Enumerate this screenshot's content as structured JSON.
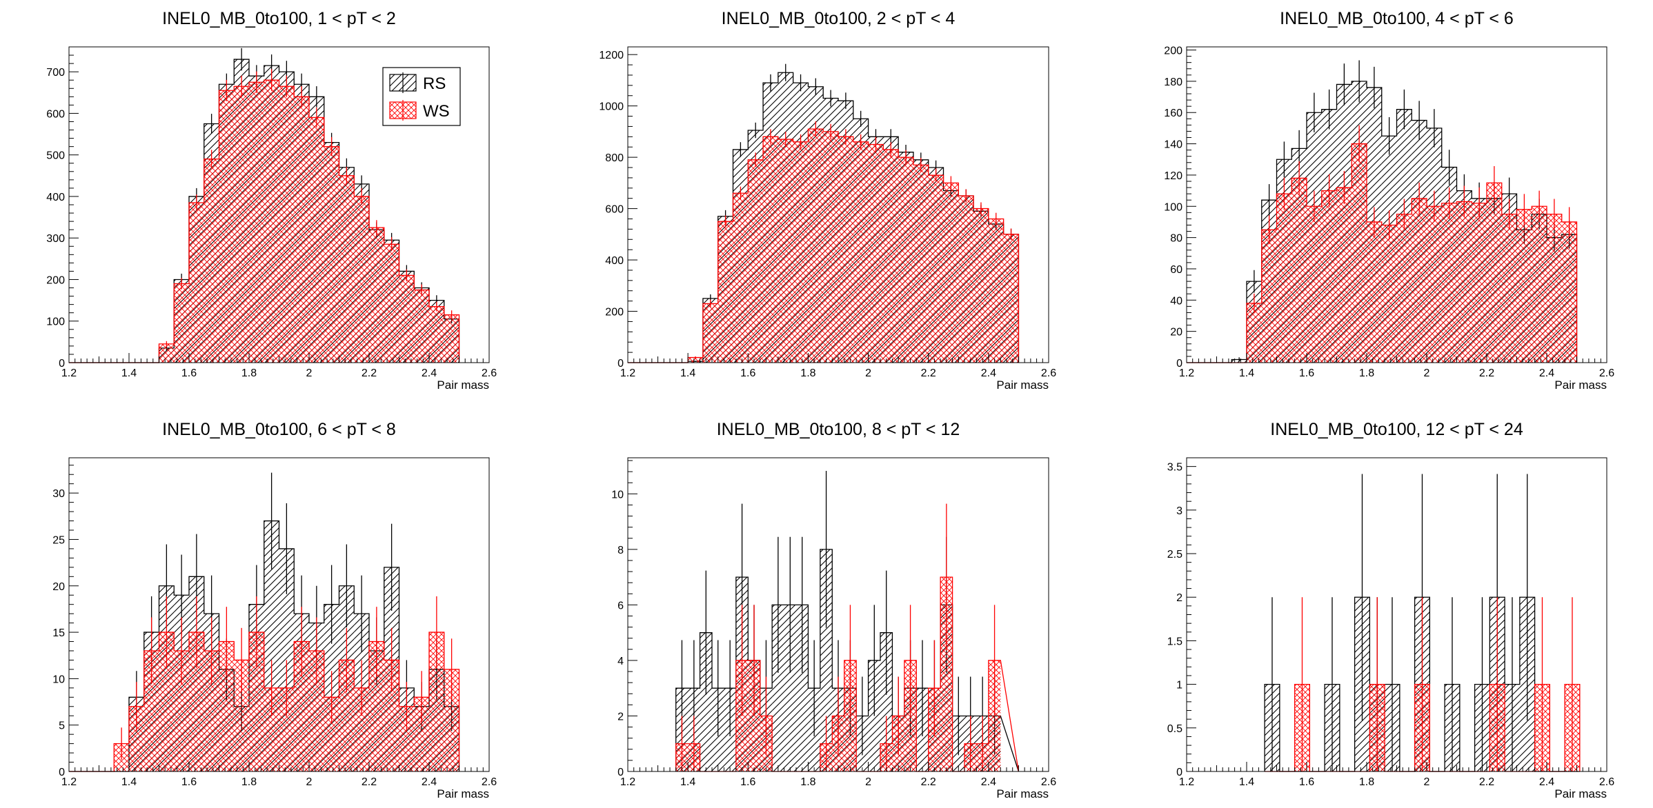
{
  "colors": {
    "rs": "#000000",
    "ws": "#ff0000",
    "background": "#ffffff"
  },
  "legend": {
    "placement": "top-right",
    "panel": 0,
    "entries": [
      "RS",
      "WS"
    ]
  },
  "chart_data": [
    {
      "type": "bar",
      "title": "INEL0_MB_0to100, 1 < pT < 2",
      "xlabel": "Pair mass",
      "xlim": [
        1.2,
        2.6
      ],
      "ylim": [
        0,
        760
      ],
      "xticks": [
        1.2,
        1.4,
        1.6,
        1.8,
        2,
        2.2,
        2.4,
        2.6
      ],
      "xticklabels": [
        "1.2",
        "1.4",
        "1.6",
        "1.8",
        "2",
        "2.2",
        "2.4",
        "2.6"
      ],
      "yticks": [
        0,
        100,
        200,
        300,
        400,
        500,
        600,
        700
      ],
      "yticklabels": [
        "0",
        "100",
        "200",
        "300",
        "400",
        "500",
        "600",
        "700"
      ],
      "bin_edges": [
        1.2,
        1.25,
        1.3,
        1.35,
        1.4,
        1.45,
        1.5,
        1.55,
        1.6,
        1.65,
        1.7,
        1.75,
        1.8,
        1.85,
        1.9,
        1.95,
        2.0,
        2.05,
        2.1,
        2.15,
        2.2,
        2.25,
        2.3,
        2.35,
        2.4,
        2.45,
        2.5
      ],
      "series": [
        {
          "name": "RS",
          "values": [
            0,
            0,
            0,
            0,
            0,
            0,
            35,
            200,
            400,
            575,
            670,
            730,
            690,
            715,
            700,
            670,
            640,
            530,
            470,
            430,
            320,
            295,
            220,
            180,
            150,
            105
          ]
        },
        {
          "name": "WS",
          "values": [
            0,
            0,
            0,
            0,
            0,
            0,
            45,
            190,
            385,
            490,
            655,
            665,
            675,
            680,
            665,
            640,
            590,
            520,
            450,
            400,
            325,
            285,
            210,
            175,
            135,
            115
          ]
        }
      ]
    },
    {
      "type": "bar",
      "title": "INEL0_MB_0to100, 2 < pT < 4",
      "xlabel": "Pair mass",
      "xlim": [
        1.2,
        2.6
      ],
      "ylim": [
        0,
        1230
      ],
      "xticks": [
        1.2,
        1.4,
        1.6,
        1.8,
        2,
        2.2,
        2.4,
        2.6
      ],
      "xticklabels": [
        "1.2",
        "1.4",
        "1.6",
        "1.8",
        "2",
        "2.2",
        "2.4",
        "2.6"
      ],
      "yticks": [
        0,
        200,
        400,
        600,
        800,
        1000,
        1200
      ],
      "yticklabels": [
        "0",
        "200",
        "400",
        "600",
        "800",
        "1000",
        "1200"
      ],
      "bin_edges": [
        1.2,
        1.25,
        1.3,
        1.35,
        1.4,
        1.45,
        1.5,
        1.55,
        1.6,
        1.65,
        1.7,
        1.75,
        1.8,
        1.85,
        1.9,
        1.95,
        2.0,
        2.05,
        2.1,
        2.15,
        2.2,
        2.25,
        2.3,
        2.35,
        2.4,
        2.45,
        2.5
      ],
      "series": [
        {
          "name": "RS",
          "values": [
            0,
            0,
            0,
            0,
            5,
            250,
            570,
            830,
            905,
            1090,
            1130,
            1090,
            1075,
            1030,
            1020,
            950,
            880,
            880,
            820,
            790,
            760,
            670,
            650,
            590,
            540,
            500
          ]
        },
        {
          "name": "WS",
          "values": [
            0,
            0,
            0,
            0,
            20,
            230,
            550,
            660,
            790,
            880,
            870,
            860,
            910,
            900,
            880,
            860,
            850,
            830,
            800,
            770,
            730,
            700,
            650,
            600,
            560,
            500
          ]
        }
      ]
    },
    {
      "type": "bar",
      "title": "INEL0_MB_0to100, 4 < pT < 6",
      "xlabel": "Pair mass",
      "xlim": [
        1.2,
        2.6
      ],
      "ylim": [
        0,
        202
      ],
      "xticks": [
        1.2,
        1.4,
        1.6,
        1.8,
        2,
        2.2,
        2.4,
        2.6
      ],
      "xticklabels": [
        "1.2",
        "1.4",
        "1.6",
        "1.8",
        "2",
        "2.2",
        "2.4",
        "2.6"
      ],
      "yticks": [
        0,
        20,
        40,
        60,
        80,
        100,
        120,
        140,
        160,
        180,
        200
      ],
      "yticklabels": [
        "0",
        "20",
        "40",
        "60",
        "80",
        "100",
        "120",
        "140",
        "160",
        "180",
        "200"
      ],
      "bin_edges": [
        1.2,
        1.25,
        1.3,
        1.35,
        1.4,
        1.45,
        1.5,
        1.55,
        1.6,
        1.65,
        1.7,
        1.75,
        1.8,
        1.85,
        1.9,
        1.95,
        2.0,
        2.05,
        2.1,
        2.15,
        2.2,
        2.25,
        2.3,
        2.35,
        2.4,
        2.45,
        2.5
      ],
      "series": [
        {
          "name": "RS",
          "values": [
            0,
            0,
            0,
            2,
            52,
            104,
            130,
            137,
            160,
            162,
            178,
            180,
            176,
            145,
            162,
            155,
            150,
            125,
            110,
            105,
            105,
            108,
            85,
            95,
            80,
            82
          ]
        },
        {
          "name": "WS",
          "values": [
            0,
            0,
            0,
            0,
            38,
            85,
            108,
            118,
            100,
            110,
            112,
            140,
            90,
            88,
            95,
            105,
            100,
            102,
            103,
            102,
            115,
            95,
            98,
            100,
            95,
            90
          ]
        }
      ]
    },
    {
      "type": "bar",
      "title": "INEL0_MB_0to100, 6 < pT < 8",
      "xlabel": "Pair mass",
      "xlim": [
        1.2,
        2.6
      ],
      "ylim": [
        0,
        33.8
      ],
      "xticks": [
        1.2,
        1.4,
        1.6,
        1.8,
        2,
        2.2,
        2.4,
        2.6
      ],
      "xticklabels": [
        "1.2",
        "1.4",
        "1.6",
        "1.8",
        "2",
        "2.2",
        "2.4",
        "2.6"
      ],
      "yticks": [
        0,
        5,
        10,
        15,
        20,
        25,
        30
      ],
      "yticklabels": [
        "0",
        "5",
        "10",
        "15",
        "20",
        "25",
        "30"
      ],
      "bin_edges": [
        1.2,
        1.25,
        1.3,
        1.35,
        1.4,
        1.45,
        1.5,
        1.55,
        1.6,
        1.65,
        1.7,
        1.75,
        1.8,
        1.85,
        1.9,
        1.95,
        2.0,
        2.05,
        2.1,
        2.15,
        2.2,
        2.25,
        2.3,
        2.35,
        2.4,
        2.45,
        2.5
      ],
      "series": [
        {
          "name": "RS",
          "values": [
            0,
            0,
            0,
            0,
            8,
            15,
            20,
            19,
            21,
            17,
            11,
            7,
            18,
            27,
            24,
            17,
            16,
            18,
            20,
            17,
            13,
            22,
            9,
            7,
            11,
            7
          ]
        },
        {
          "name": "WS",
          "values": [
            0,
            0,
            0,
            3,
            7,
            13,
            15,
            13,
            15,
            13,
            14,
            12,
            15,
            9,
            9,
            14,
            13,
            8,
            12,
            9,
            14,
            12,
            7,
            8,
            15,
            11
          ]
        }
      ]
    },
    {
      "type": "bar",
      "title": "INEL0_MB_0to100, 8 < pT < 12",
      "xlabel": "Pair mass",
      "xlim": [
        1.2,
        2.6
      ],
      "ylim": [
        0,
        11.3
      ],
      "xticks": [
        1.2,
        1.4,
        1.6,
        1.8,
        2,
        2.2,
        2.4,
        2.6
      ],
      "xticklabels": [
        "1.2",
        "1.4",
        "1.6",
        "1.8",
        "2",
        "2.2",
        "2.4",
        "2.6"
      ],
      "yticks": [
        0,
        2,
        4,
        6,
        8,
        10
      ],
      "yticklabels": [
        "0",
        "2",
        "4",
        "6",
        "8",
        "10"
      ],
      "bin_edges": [
        1.36,
        1.4,
        1.44,
        1.48,
        1.52,
        1.56,
        1.6,
        1.64,
        1.68,
        1.72,
        1.76,
        1.8,
        1.84,
        1.88,
        1.92,
        1.96,
        2.0,
        2.04,
        2.08,
        2.12,
        2.16,
        2.2,
        2.24,
        2.28,
        2.32,
        2.36,
        2.4,
        2.44,
        2.5
      ],
      "series": [
        {
          "name": "RS",
          "values": [
            3,
            3,
            5,
            3,
            3,
            7,
            4,
            3,
            6,
            6,
            6,
            3,
            8,
            3,
            3,
            2,
            4,
            5,
            2,
            3,
            3,
            3,
            6,
            2,
            2,
            2,
            2
          ]
        },
        {
          "name": "WS",
          "values": [
            1,
            1,
            0,
            0,
            0,
            4,
            4,
            2,
            0,
            0,
            0,
            0,
            1,
            2,
            4,
            0,
            0,
            1,
            2,
            4,
            0,
            3,
            7,
            0,
            1,
            1,
            4
          ]
        }
      ]
    },
    {
      "type": "bar",
      "title": "INEL0_MB_0to100, 12 < pT < 24",
      "xlabel": "Pair mass",
      "xlim": [
        1.2,
        2.6
      ],
      "ylim": [
        0,
        3.6
      ],
      "xticks": [
        1.2,
        1.4,
        1.6,
        1.8,
        2,
        2.2,
        2.4,
        2.6
      ],
      "xticklabels": [
        "1.2",
        "1.4",
        "1.6",
        "1.8",
        "2",
        "2.2",
        "2.4",
        "2.6"
      ],
      "yticks": [
        0,
        0.5,
        1,
        1.5,
        2,
        2.5,
        3,
        3.5
      ],
      "yticklabels": [
        "0",
        "0.5",
        "1",
        "1.5",
        "2",
        "2.5",
        "3",
        "3.5"
      ],
      "bin_edges": [
        1.46,
        1.51,
        1.56,
        1.61,
        1.66,
        1.71,
        1.76,
        1.81,
        1.86,
        1.91,
        1.96,
        2.01,
        2.06,
        2.11,
        2.16,
        2.21,
        2.26,
        2.31,
        2.36,
        2.41,
        2.46,
        2.51
      ],
      "series": [
        {
          "name": "RS",
          "values": [
            1,
            0,
            0,
            0,
            1,
            0,
            2,
            1,
            1,
            0,
            2,
            0,
            1,
            0,
            1,
            2,
            1,
            2,
            0,
            0,
            0
          ]
        },
        {
          "name": "WS",
          "values": [
            0,
            0,
            1,
            0,
            0,
            0,
            0,
            1,
            0,
            0,
            1,
            0,
            0,
            0,
            0,
            1,
            0,
            0,
            1,
            0,
            1
          ]
        }
      ]
    }
  ]
}
